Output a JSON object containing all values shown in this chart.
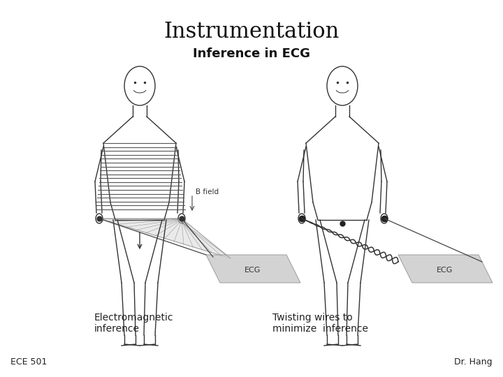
{
  "title": "Instrumentation",
  "subtitle": "Inference in ECG",
  "label_left": "Electromagnetic\ninference",
  "label_right": "Twisting wires to\nminimize  inference",
  "footer_left": "ECE 501",
  "footer_right": "Dr. Hang",
  "bg_color": "#ffffff",
  "title_fontsize": 22,
  "subtitle_fontsize": 13,
  "label_fontsize": 10,
  "footer_fontsize": 9,
  "body_color": "#333333",
  "ecg_color": "#bbbbbb",
  "hatch_color": "#555555"
}
